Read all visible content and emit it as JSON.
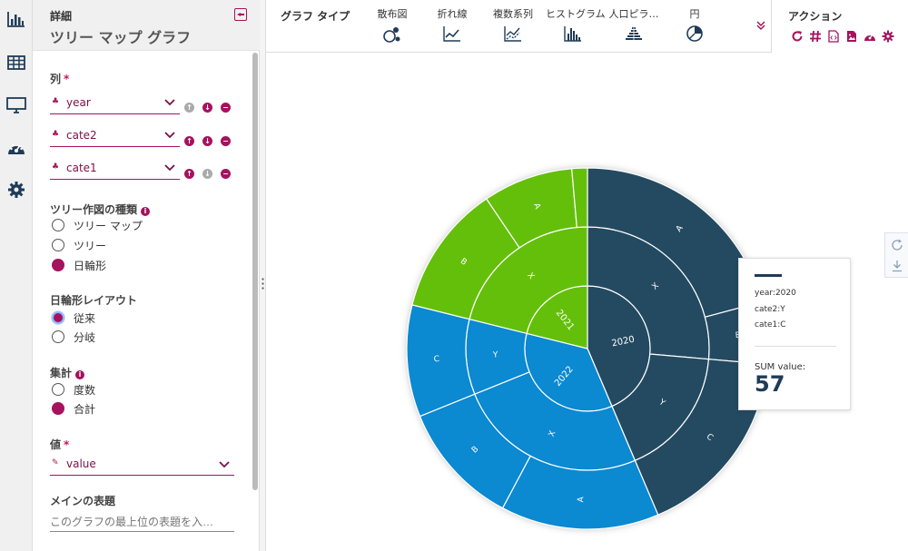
{
  "panel": {
    "label": "詳細",
    "title": "ツリー マップ グラフ",
    "columns_label": "列",
    "columns": [
      {
        "value": "year"
      },
      {
        "value": "cate2"
      },
      {
        "value": "cate1"
      }
    ],
    "tree_type_label": "ツリー作図の種類",
    "tree_types": [
      "ツリー マップ",
      "ツリー",
      "日輪形"
    ],
    "layout_label": "日輪形レイアウト",
    "layouts": [
      "従来",
      "分岐"
    ],
    "aggregate_label": "集計",
    "aggregates": [
      "度数",
      "合計"
    ],
    "value_label": "値",
    "value_field": "value",
    "main_title_label": "メインの表題",
    "main_title_placeholder": "このグラフの最上位の表題を入…"
  },
  "toolbar": {
    "label": "グラフ タイプ",
    "types": [
      "散布図",
      "折れ線",
      "複数系列",
      "ヒストグラム",
      "人口ピラ…",
      "円"
    ],
    "actions_label": "アクション"
  },
  "colors": {
    "accent": "#a5125e",
    "navy": "#244a61",
    "green": "#64bf0a",
    "blue": "#0b89d1"
  },
  "tooltip": {
    "line1": "year:2020",
    "line2": "cate2:Y",
    "line3": "cate1:C",
    "sum_label": "SUM value:",
    "sum_value": "57"
  },
  "chart_data": {
    "type": "sunburst",
    "levels": [
      "year",
      "cate2",
      "cate1"
    ],
    "aggregate": "SUM value",
    "rings": {
      "year": [
        {
          "label": "2020",
          "start": 0,
          "end": 157,
          "color": "navy"
        },
        {
          "label": "2022",
          "start": 157,
          "end": 284,
          "color": "blue"
        },
        {
          "label": "2021",
          "start": 284,
          "end": 360,
          "color": "green"
        }
      ],
      "cate2": [
        {
          "label": "X",
          "start": 0,
          "end": 95,
          "color": "navy"
        },
        {
          "label": "Y",
          "start": 95,
          "end": 157,
          "color": "navy"
        },
        {
          "label": "X",
          "start": 157,
          "end": 248,
          "color": "blue"
        },
        {
          "label": "Y",
          "start": 248,
          "end": 284,
          "color": "blue"
        },
        {
          "label": "X",
          "start": 284,
          "end": 360,
          "color": "green"
        }
      ],
      "cate1": [
        {
          "label": "A",
          "start": 0,
          "end": 75,
          "color": "navy"
        },
        {
          "label": "B",
          "start": 75,
          "end": 95,
          "color": "navy"
        },
        {
          "label": "C",
          "start": 95,
          "end": 157,
          "color": "navy"
        },
        {
          "label": "A",
          "start": 157,
          "end": 208,
          "color": "blue"
        },
        {
          "label": "B",
          "start": 208,
          "end": 248,
          "color": "blue"
        },
        {
          "label": "C",
          "start": 248,
          "end": 284,
          "color": "blue"
        },
        {
          "label": "B",
          "start": 284,
          "end": 326,
          "color": "green"
        },
        {
          "label": "A",
          "start": 326,
          "end": 355,
          "color": "green"
        },
        {
          "label": "",
          "start": 355,
          "end": 360,
          "color": "green"
        }
      ]
    }
  }
}
